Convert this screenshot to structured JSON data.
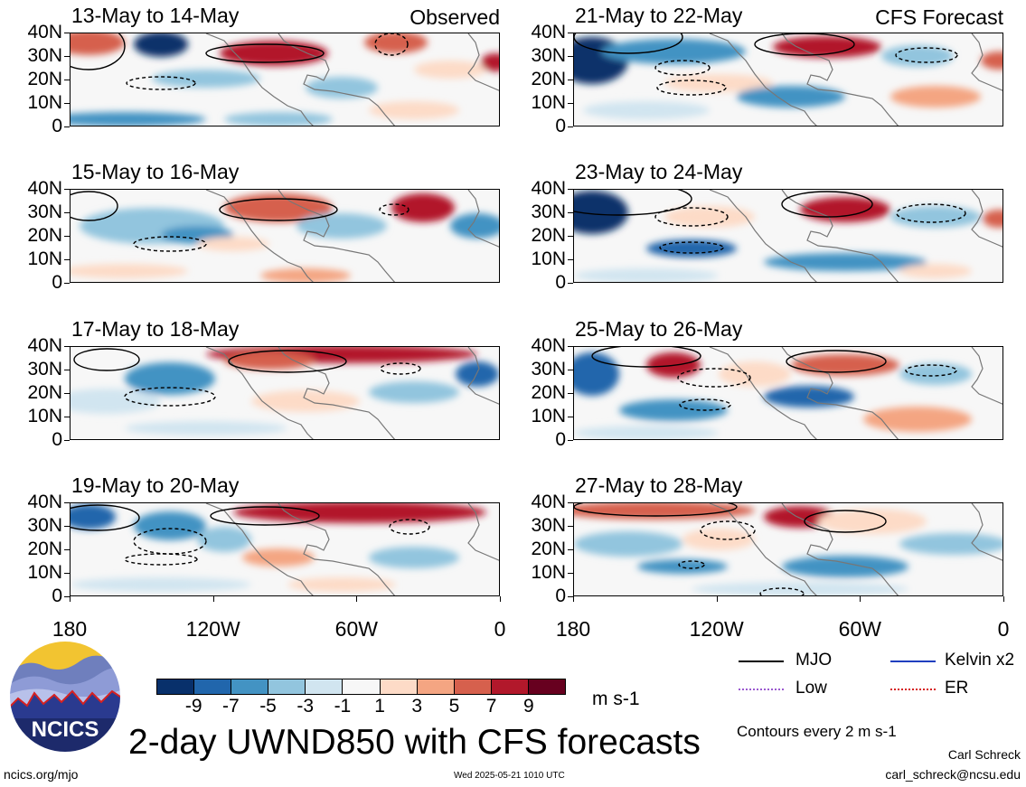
{
  "panels": [
    {
      "title": "13-May to 14-May",
      "tag": "Observed",
      "col": 0,
      "row": 0
    },
    {
      "title": "15-May to 16-May",
      "tag": "",
      "col": 0,
      "row": 1
    },
    {
      "title": "17-May to 18-May",
      "tag": "",
      "col": 0,
      "row": 2
    },
    {
      "title": "19-May to 20-May",
      "tag": "",
      "col": 0,
      "row": 3
    },
    {
      "title": "21-May to 22-May",
      "tag": "CFS Forecast",
      "col": 1,
      "row": 0
    },
    {
      "title": "23-May to 24-May",
      "tag": "",
      "col": 1,
      "row": 1
    },
    {
      "title": "25-May to 26-May",
      "tag": "",
      "col": 1,
      "row": 2
    },
    {
      "title": "27-May to 28-May",
      "tag": "",
      "col": 1,
      "row": 3
    }
  ],
  "lat_labels": [
    "40N",
    "30N",
    "20N",
    "10N",
    "0"
  ],
  "lon_labels": [
    "180",
    "120W",
    "60W",
    "0"
  ],
  "colorbar": {
    "labels": [
      "-9",
      "-7",
      "-5",
      "-3",
      "-1",
      "1",
      "3",
      "5",
      "7",
      "9"
    ],
    "colors": [
      "#08306b",
      "#2166ac",
      "#4393c3",
      "#92c5de",
      "#d1e5f0",
      "#f7f7f7",
      "#fddbc7",
      "#f4a582",
      "#d6604d",
      "#b2182b",
      "#67001f"
    ],
    "units": "m s-1"
  },
  "legend": {
    "mjo": {
      "label": "MJO",
      "color": "#000000"
    },
    "kelvin": {
      "label": "Kelvin x2",
      "color": "#1f3fbf"
    },
    "low": {
      "label": "Low",
      "color": "#9b59d0"
    },
    "er": {
      "label": "ER",
      "color": "#d62020"
    }
  },
  "contours_note": "Contours every 2 m s-1",
  "main_title": "2-day UWND850 with CFS forecasts",
  "footer": {
    "url": "ncics.org/mjo",
    "timestamp": "Wed 2025-05-21 1010 UTC",
    "author": "Carl Schreck",
    "email": "carl_schreck@ncsu.edu"
  },
  "logo_text": "NCICS"
}
